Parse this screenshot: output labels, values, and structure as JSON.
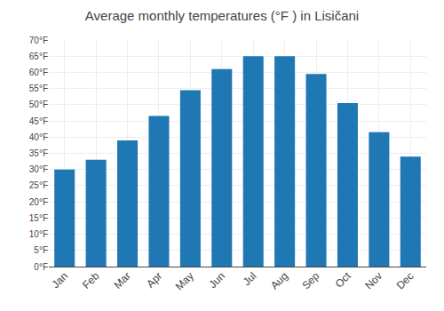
{
  "chart_data": {
    "type": "bar",
    "title": "Average monthly temperatures (°F ) in Lisičani",
    "categories": [
      "Jan",
      "Feb",
      "Mar",
      "Apr",
      "May",
      "Jun",
      "Jul",
      "Aug",
      "Sep",
      "Oct",
      "Nov",
      "Dec"
    ],
    "values": [
      30,
      33,
      39,
      46.5,
      54.5,
      61,
      65,
      65,
      59.5,
      50.5,
      41.5,
      34
    ],
    "ylim": [
      0,
      70
    ],
    "yticks": [
      {
        "value": 0,
        "label": "0°F"
      },
      {
        "value": 5,
        "label": "5°F"
      },
      {
        "value": 10,
        "label": "10°F"
      },
      {
        "value": 15,
        "label": "15°F"
      },
      {
        "value": 20,
        "label": "20°F"
      },
      {
        "value": 25,
        "label": "25°F"
      },
      {
        "value": 30,
        "label": "30°F"
      },
      {
        "value": 35,
        "label": "35°F"
      },
      {
        "value": 40,
        "label": "40°F"
      },
      {
        "value": 45,
        "label": "45°F"
      },
      {
        "value": 50,
        "label": "50°F"
      },
      {
        "value": 55,
        "label": "55°F"
      },
      {
        "value": 60,
        "label": "60°F"
      },
      {
        "value": 65,
        "label": "65°F"
      },
      {
        "value": 70,
        "label": "70°F"
      }
    ],
    "grid": true
  }
}
